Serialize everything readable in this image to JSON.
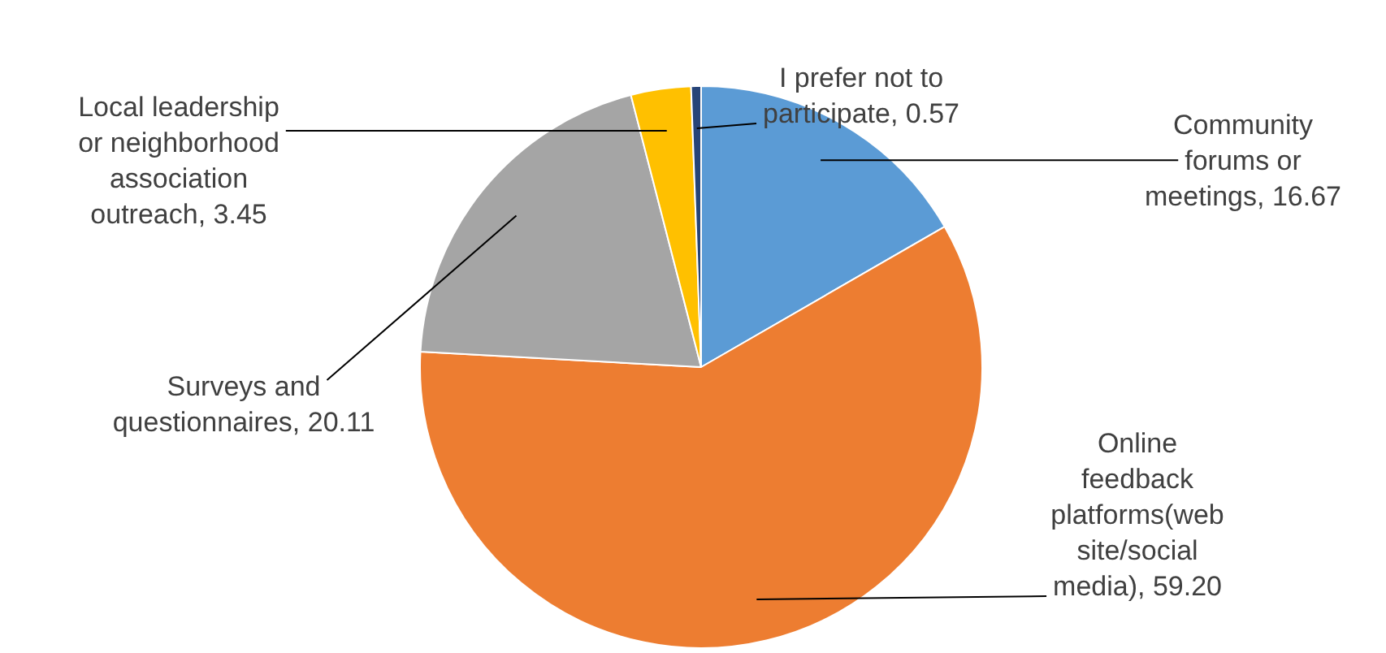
{
  "chart_data": {
    "type": "pie",
    "categories": [
      "Community forums or meetings",
      "Online feedback platforms(website/social media)",
      "Surveys and questionnaires",
      "Local leadership or neighborhood association outreach",
      "I prefer not to participate"
    ],
    "values": [
      16.67,
      59.2,
      20.11,
      3.45,
      0.57
    ],
    "value_labels": [
      "16.67",
      "59.20",
      "20.11",
      "3.45",
      "0.57"
    ],
    "colors": [
      "#5b9bd5",
      "#ed7d31",
      "#a5a5a5",
      "#ffc000",
      "#264478"
    ],
    "legend": false
  }
}
